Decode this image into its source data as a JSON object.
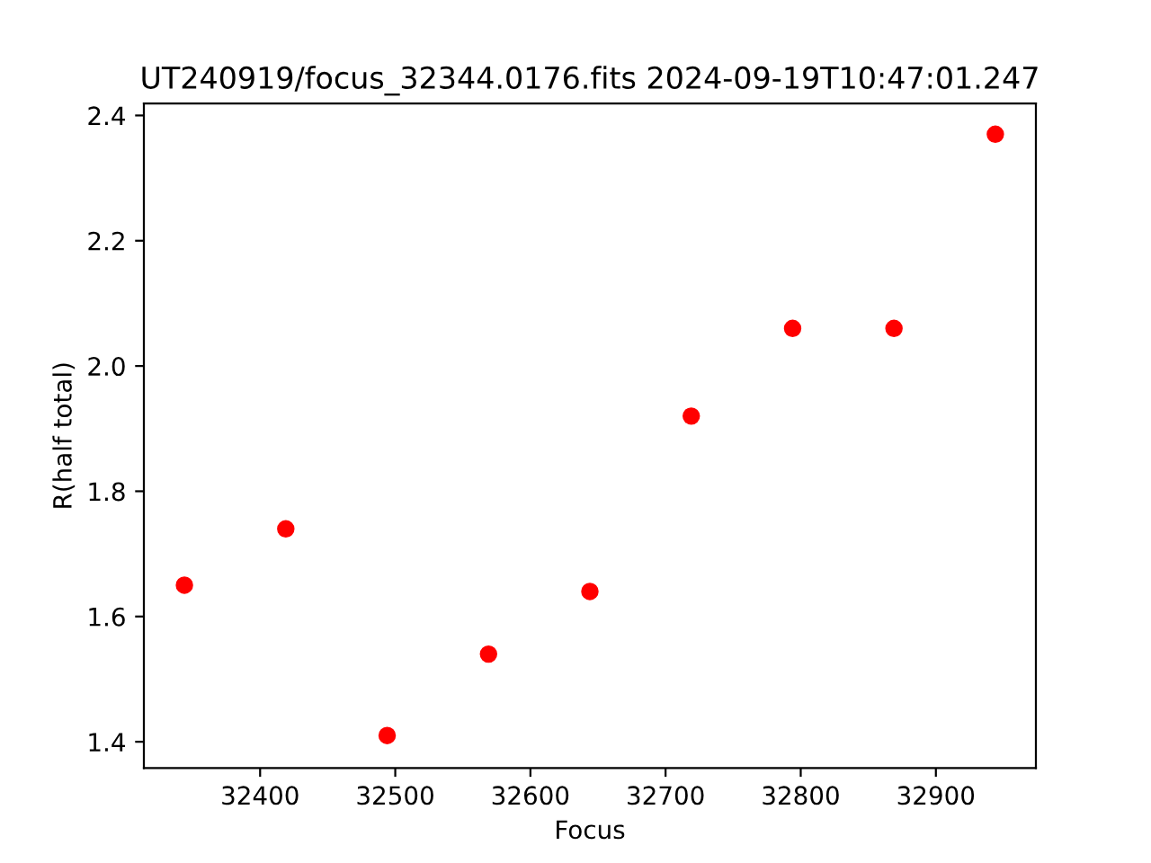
{
  "chart_data": {
    "type": "scatter",
    "title": "UT240919/focus_32344.0176.fits 2024-09-19T10:47:01.247",
    "xlabel": "Focus",
    "ylabel": "R(half total)",
    "x": [
      32344,
      32419,
      32494,
      32569,
      32644,
      32719,
      32794,
      32869,
      32944
    ],
    "series": [
      {
        "color": "#ff0000",
        "values": [
          1.65,
          1.74,
          1.41,
          1.54,
          1.64,
          1.92,
          2.06,
          2.06,
          2.37
        ]
      }
    ],
    "xlim": [
      32314,
      32974
    ],
    "xticks": [
      32400,
      32500,
      32600,
      32700,
      32800,
      32900
    ],
    "ylim": [
      1.358,
      2.419
    ],
    "yticks": [
      {
        "value": 1.4,
        "label": "1.4"
      },
      {
        "value": 1.6,
        "label": "1.6"
      },
      {
        "value": 1.8,
        "label": "1.8"
      },
      {
        "value": 2.0,
        "label": "2.0"
      },
      {
        "value": 2.2,
        "label": "2.2"
      },
      {
        "value": 2.4,
        "label": "2.4"
      }
    ],
    "marker": "circle"
  }
}
